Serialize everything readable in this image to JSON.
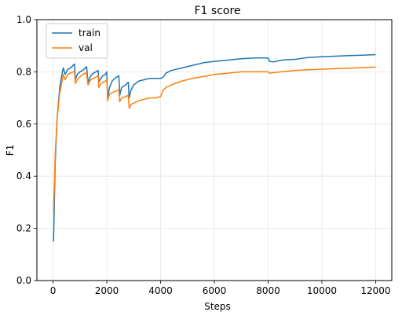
{
  "chart_data": {
    "type": "line",
    "title": "F1 score",
    "xlabel": "Steps",
    "ylabel": "F1",
    "xlim": [
      -600,
      12600
    ],
    "ylim": [
      0.0,
      1.0
    ],
    "xticks": [
      0,
      2000,
      4000,
      6000,
      8000,
      10000,
      12000
    ],
    "yticks": [
      0.0,
      0.2,
      0.4,
      0.6,
      0.8,
      1.0
    ],
    "grid": true,
    "legend_position": "top-left",
    "series": [
      {
        "name": "train",
        "color": "#1f77b4",
        "x": [
          20,
          80,
          150,
          250,
          350,
          380,
          450,
          550,
          650,
          750,
          800,
          830,
          900,
          1000,
          1100,
          1200,
          1250,
          1300,
          1400,
          1500,
          1600,
          1680,
          1700,
          1750,
          1850,
          1950,
          2000,
          2030,
          2100,
          2200,
          2300,
          2450,
          2480,
          2550,
          2700,
          2800,
          2830,
          2900,
          3000,
          3200,
          3400,
          3600,
          3800,
          4000,
          4100,
          4200,
          4400,
          4800,
          5200,
          5600,
          6000,
          6500,
          7000,
          7500,
          8000,
          8050,
          8200,
          8500,
          9000,
          9500,
          10000,
          10500,
          11000,
          11500,
          12000
        ],
        "y": [
          0.15,
          0.45,
          0.62,
          0.74,
          0.8,
          0.815,
          0.79,
          0.81,
          0.815,
          0.825,
          0.83,
          0.77,
          0.79,
          0.8,
          0.805,
          0.815,
          0.82,
          0.76,
          0.785,
          0.795,
          0.8,
          0.805,
          0.76,
          0.77,
          0.785,
          0.79,
          0.8,
          0.7,
          0.74,
          0.765,
          0.775,
          0.785,
          0.71,
          0.74,
          0.75,
          0.76,
          0.7,
          0.73,
          0.75,
          0.765,
          0.77,
          0.775,
          0.775,
          0.775,
          0.78,
          0.795,
          0.805,
          0.815,
          0.825,
          0.835,
          0.84,
          0.845,
          0.85,
          0.853,
          0.853,
          0.84,
          0.838,
          0.845,
          0.848,
          0.855,
          0.858,
          0.86,
          0.862,
          0.864,
          0.866
        ]
      },
      {
        "name": "val",
        "color": "#ff7f0e",
        "x": [
          20,
          80,
          150,
          250,
          350,
          380,
          450,
          550,
          650,
          750,
          800,
          830,
          900,
          1000,
          1100,
          1200,
          1250,
          1300,
          1400,
          1500,
          1600,
          1680,
          1700,
          1750,
          1850,
          1950,
          2000,
          2030,
          2100,
          2200,
          2300,
          2450,
          2480,
          2550,
          2700,
          2800,
          2830,
          2900,
          3000,
          3200,
          3400,
          3600,
          3800,
          4000,
          4100,
          4200,
          4400,
          4800,
          5200,
          5600,
          6000,
          6500,
          7000,
          7500,
          8000,
          8050,
          8200,
          8500,
          9000,
          9500,
          10000,
          10500,
          11000,
          11500,
          12000
        ],
        "y": [
          0.26,
          0.48,
          0.62,
          0.72,
          0.77,
          0.79,
          0.77,
          0.79,
          0.795,
          0.8,
          0.8,
          0.755,
          0.77,
          0.78,
          0.79,
          0.795,
          0.795,
          0.75,
          0.77,
          0.775,
          0.78,
          0.785,
          0.74,
          0.75,
          0.76,
          0.765,
          0.77,
          0.69,
          0.715,
          0.72,
          0.725,
          0.73,
          0.685,
          0.7,
          0.705,
          0.71,
          0.66,
          0.675,
          0.68,
          0.69,
          0.695,
          0.7,
          0.7,
          0.705,
          0.73,
          0.74,
          0.75,
          0.765,
          0.775,
          0.782,
          0.79,
          0.795,
          0.8,
          0.8,
          0.8,
          0.795,
          0.797,
          0.8,
          0.805,
          0.808,
          0.81,
          0.812,
          0.814,
          0.816,
          0.818
        ]
      }
    ]
  }
}
